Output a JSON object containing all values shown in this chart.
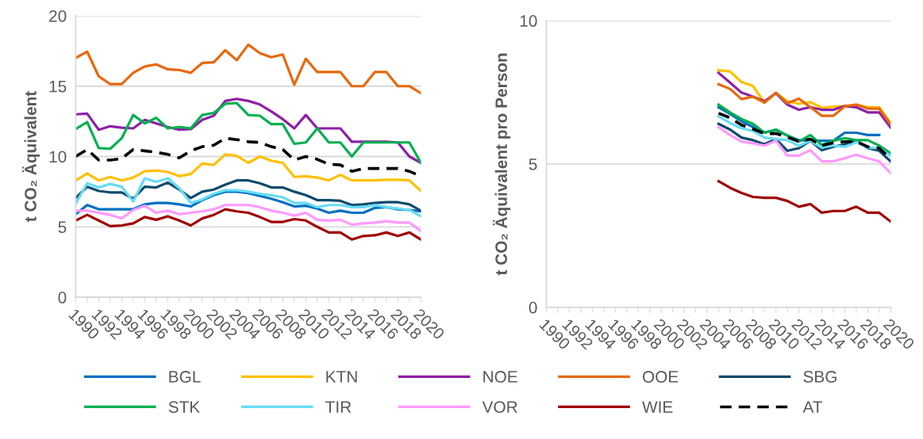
{
  "chart_data": [
    {
      "type": "line",
      "ylabel": "t CO₂ Äquivalent",
      "categories": [
        "1990",
        null,
        "1992",
        null,
        "1994",
        null,
        "1996",
        null,
        "1998",
        null,
        "2000",
        null,
        "2002",
        null,
        "2004",
        null,
        "2006",
        null,
        "2008",
        null,
        "2010",
        null,
        "2012",
        null,
        "2014",
        null,
        "2016",
        null,
        "2018",
        null,
        "2020"
      ],
      "ylim": [
        0,
        20
      ],
      "yticks": [
        0,
        5,
        10,
        15,
        20
      ],
      "grid": "y",
      "legend": "bottom",
      "series": [
        {
          "name": "BGL",
          "color": "#0070c0",
          "values": [
            5.9,
            6.55,
            6.25,
            6.25,
            6.25,
            6.25,
            6.6,
            6.7,
            6.7,
            6.6,
            6.45,
            6.9,
            7.25,
            7.5,
            7.5,
            7.4,
            7.2,
            7.0,
            6.75,
            6.45,
            6.5,
            6.3,
            6.0,
            6.15,
            6.0,
            6.0,
            6.35,
            6.4,
            6.25,
            6.2,
            6.1
          ]
        },
        {
          "name": "KTN",
          "color": "#ffc000",
          "values": [
            8.3,
            8.8,
            8.3,
            8.55,
            8.3,
            8.5,
            8.95,
            9.0,
            8.9,
            8.6,
            8.75,
            9.5,
            9.4,
            10.15,
            10.05,
            9.55,
            10.0,
            9.7,
            9.55,
            8.55,
            8.6,
            8.5,
            8.3,
            8.7,
            8.3,
            8.3,
            8.3,
            8.35,
            8.35,
            8.3,
            7.55
          ]
        },
        {
          "name": "NOE",
          "color": "#8e1fa6",
          "values": [
            13.0,
            13.05,
            11.9,
            12.15,
            12.05,
            12.0,
            12.6,
            12.35,
            12.1,
            11.9,
            11.95,
            12.6,
            12.9,
            13.95,
            14.1,
            13.95,
            13.7,
            13.2,
            12.65,
            12.0,
            12.95,
            12.0,
            12.0,
            12.0,
            11.05,
            11.05,
            11.05,
            11.05,
            11.0,
            10.0,
            9.55
          ]
        },
        {
          "name": "OOE",
          "color": "#e8680c",
          "values": [
            17.0,
            17.45,
            15.7,
            15.15,
            15.15,
            15.95,
            16.4,
            16.55,
            16.2,
            16.15,
            15.95,
            16.65,
            16.7,
            17.55,
            16.85,
            17.95,
            17.35,
            17.05,
            17.25,
            15.1,
            16.95,
            16.0,
            16.0,
            16.0,
            15.0,
            15.0,
            16.0,
            16.0,
            15.0,
            15.0,
            14.5
          ]
        },
        {
          "name": "SBG",
          "color": "#0e4a6b",
          "values": [
            7.05,
            7.85,
            7.55,
            7.45,
            7.45,
            7.0,
            7.85,
            7.8,
            8.15,
            7.65,
            7.05,
            7.5,
            7.65,
            8.0,
            8.3,
            8.3,
            8.1,
            7.8,
            7.8,
            7.5,
            7.25,
            6.9,
            6.9,
            6.85,
            6.55,
            6.6,
            6.7,
            6.75,
            6.75,
            6.6,
            6.15
          ]
        },
        {
          "name": "STK",
          "color": "#00b050",
          "values": [
            11.95,
            12.45,
            10.6,
            10.55,
            11.3,
            12.95,
            12.35,
            12.75,
            12.0,
            12.1,
            12.0,
            12.95,
            13.1,
            13.75,
            13.8,
            12.95,
            12.9,
            12.3,
            12.3,
            10.9,
            11.0,
            12.0,
            11.0,
            11.0,
            10.0,
            11.0,
            11.0,
            11.0,
            11.0,
            11.0,
            9.55
          ]
        },
        {
          "name": "TIR",
          "color": "#66dcf4",
          "values": [
            6.65,
            8.1,
            7.8,
            8.05,
            7.85,
            6.8,
            8.45,
            8.2,
            8.45,
            7.75,
            6.7,
            6.95,
            7.35,
            7.6,
            7.6,
            7.5,
            7.35,
            7.25,
            7.1,
            6.7,
            6.7,
            6.4,
            6.55,
            6.55,
            6.4,
            6.4,
            6.55,
            6.4,
            6.3,
            6.2,
            5.75
          ]
        },
        {
          "name": "VOR",
          "color": "#ff99ff",
          "values": [
            6.15,
            6.15,
            6.0,
            5.85,
            5.6,
            6.2,
            6.5,
            6.0,
            6.15,
            5.9,
            6.0,
            6.1,
            6.25,
            6.55,
            6.55,
            6.55,
            6.4,
            6.15,
            6.0,
            5.8,
            6.0,
            5.5,
            5.45,
            5.5,
            5.15,
            5.25,
            5.3,
            5.4,
            5.3,
            5.3,
            4.7
          ]
        },
        {
          "name": "WIE",
          "color": "#a00000",
          "values": [
            5.45,
            5.85,
            5.45,
            5.05,
            5.1,
            5.25,
            5.7,
            5.5,
            5.75,
            5.45,
            5.1,
            5.6,
            5.85,
            6.25,
            6.1,
            6.0,
            5.7,
            5.35,
            5.35,
            5.55,
            5.45,
            5.0,
            4.6,
            4.6,
            4.1,
            4.35,
            4.4,
            4.6,
            4.35,
            4.6,
            4.1
          ]
        },
        {
          "name": "AT",
          "color": "#000000",
          "line_style": "dashed",
          "values": [
            10.0,
            10.5,
            9.75,
            9.75,
            9.85,
            10.5,
            10.4,
            10.3,
            10.15,
            9.9,
            10.4,
            10.7,
            10.8,
            11.3,
            11.2,
            11.05,
            11.0,
            10.7,
            10.5,
            9.75,
            10.0,
            9.8,
            9.45,
            9.4,
            8.95,
            9.15,
            9.15,
            9.15,
            9.15,
            8.95,
            8.6
          ]
        }
      ]
    },
    {
      "type": "line",
      "ylabel": "t CO₂ Äquivalent pro Person",
      "categories": [
        "1990",
        null,
        "1992",
        null,
        "1994",
        null,
        "1996",
        null,
        "1998",
        null,
        "2000",
        null,
        "2002",
        null,
        "2004",
        null,
        "2006",
        null,
        "2008",
        null,
        "2010",
        null,
        "2012",
        null,
        "2014",
        null,
        "2016",
        null,
        "2018",
        null,
        "2020"
      ],
      "ylim": [
        0,
        10
      ],
      "yticks": [
        0,
        5,
        10
      ],
      "grid": "y",
      "series": [
        {
          "color": "#0070c0",
          "values": [
            null,
            null,
            null,
            null,
            null,
            null,
            null,
            null,
            null,
            null,
            null,
            null,
            null,
            null,
            null,
            6.98,
            6.75,
            6.49,
            6.29,
            6.1,
            6.18,
            5.99,
            5.83,
            5.81,
            5.81,
            5.81,
            6.09,
            6.09,
            6.01,
            6.01,
            null
          ]
        },
        {
          "color": "#ffc000",
          "values": [
            null,
            null,
            null,
            null,
            null,
            null,
            null,
            null,
            null,
            null,
            null,
            null,
            null,
            null,
            null,
            8.27,
            8.23,
            7.86,
            7.72,
            7.14,
            7.47,
            7.19,
            7.1,
            7.16,
            6.96,
            7.0,
            7.02,
            7.07,
            6.98,
            6.98,
            6.43
          ]
        },
        {
          "color": "#8e1fa6",
          "values": [
            null,
            null,
            null,
            null,
            null,
            null,
            null,
            null,
            null,
            null,
            null,
            null,
            null,
            null,
            null,
            8.18,
            7.84,
            7.49,
            7.35,
            7.19,
            7.47,
            7.07,
            6.89,
            6.98,
            6.89,
            6.89,
            7.02,
            6.98,
            6.8,
            6.8,
            6.27
          ]
        },
        {
          "color": "#e8680c",
          "values": [
            null,
            null,
            null,
            null,
            null,
            null,
            null,
            null,
            null,
            null,
            null,
            null,
            null,
            null,
            null,
            7.78,
            7.62,
            7.26,
            7.35,
            7.14,
            7.49,
            7.12,
            7.28,
            6.98,
            6.68,
            6.68,
            7.01,
            7.07,
            6.93,
            6.93,
            6.38
          ]
        },
        {
          "color": "#0e4a6b",
          "values": [
            null,
            null,
            null,
            null,
            null,
            null,
            null,
            null,
            null,
            null,
            null,
            null,
            null,
            null,
            null,
            6.4,
            6.2,
            5.92,
            5.83,
            5.69,
            5.87,
            5.46,
            5.55,
            5.81,
            5.48,
            5.6,
            5.69,
            5.81,
            5.55,
            5.46,
            5.09
          ]
        },
        {
          "color": "#00b050",
          "values": [
            null,
            null,
            null,
            null,
            null,
            null,
            null,
            null,
            null,
            null,
            null,
            null,
            null,
            null,
            null,
            7.07,
            6.8,
            6.57,
            6.4,
            6.09,
            6.2,
            5.99,
            5.78,
            6.01,
            5.66,
            5.81,
            5.9,
            5.83,
            5.83,
            5.64,
            5.37
          ]
        },
        {
          "color": "#66dcf4",
          "values": [
            null,
            null,
            null,
            null,
            null,
            null,
            null,
            null,
            null,
            null,
            null,
            null,
            null,
            null,
            null,
            6.66,
            6.43,
            6.24,
            6.15,
            5.92,
            5.87,
            5.83,
            5.63,
            5.81,
            5.57,
            5.64,
            5.6,
            5.76,
            5.57,
            5.55,
            5.28
          ]
        },
        {
          "color": "#ff99ff",
          "values": [
            null,
            null,
            null,
            null,
            null,
            null,
            null,
            null,
            null,
            null,
            null,
            null,
            null,
            null,
            null,
            6.29,
            6.01,
            5.78,
            5.72,
            5.64,
            5.81,
            5.29,
            5.29,
            5.48,
            5.09,
            5.09,
            5.2,
            5.32,
            5.2,
            5.09,
            4.68
          ]
        },
        {
          "color": "#a00000",
          "values": [
            null,
            null,
            null,
            null,
            null,
            null,
            null,
            null,
            null,
            null,
            null,
            null,
            null,
            null,
            null,
            4.4,
            4.17,
            3.99,
            3.85,
            3.82,
            3.82,
            3.71,
            3.51,
            3.6,
            3.3,
            3.36,
            3.36,
            3.51,
            3.3,
            3.3,
            2.99
          ]
        },
        {
          "color": "#000000",
          "line_style": "dashed",
          "values": [
            null,
            null,
            null,
            null,
            null,
            null,
            null,
            null,
            null,
            null,
            null,
            null,
            null,
            null,
            null,
            6.77,
            6.61,
            6.36,
            6.22,
            6.06,
            6.06,
            5.94,
            5.78,
            5.87,
            5.64,
            5.74,
            5.78,
            5.78,
            5.6,
            5.55,
            5.18
          ]
        }
      ]
    }
  ]
}
